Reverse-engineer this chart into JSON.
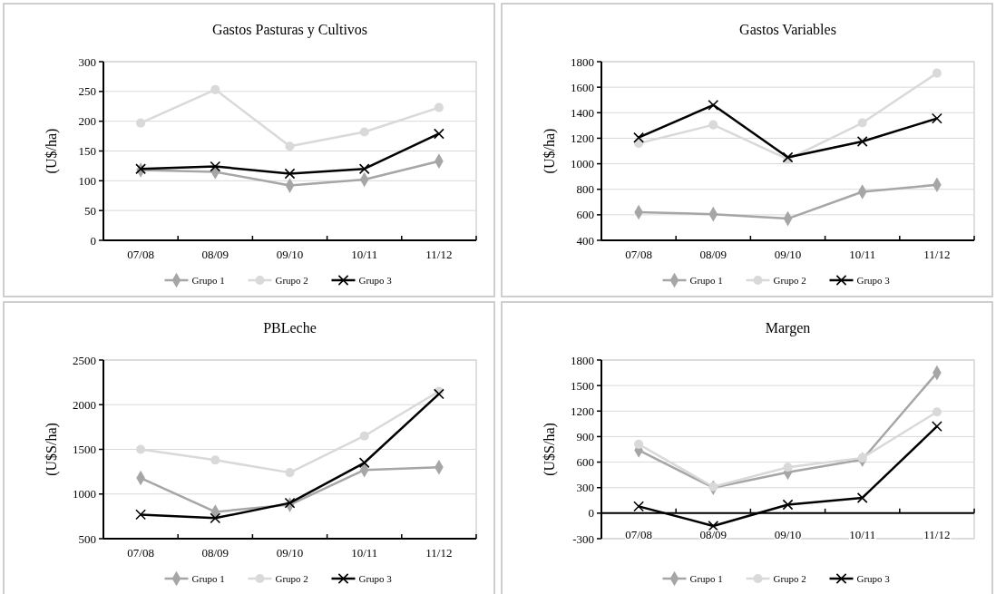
{
  "chart_data": [
    {
      "type": "line",
      "title": "Gastos Pasturas y Cultivos",
      "ylabel": "(U$/ha)",
      "categories": [
        "07/08",
        "08/09",
        "09/10",
        "10/11",
        "11/12"
      ],
      "ylim": [
        0,
        300
      ],
      "yticks": [
        0,
        50,
        100,
        150,
        200,
        250,
        300
      ],
      "grid": "y",
      "legend": "bottom",
      "series": [
        {
          "name": "Grupo 1",
          "color": "#a6a6a6",
          "marker": "diamond",
          "values": [
            118,
            115,
            92,
            102,
            133
          ]
        },
        {
          "name": "Grupo 2",
          "color": "#d9d9d9",
          "marker": "circle",
          "values": [
            197,
            253,
            158,
            182,
            223
          ]
        },
        {
          "name": "Grupo 3",
          "color": "#000000",
          "marker": "cross",
          "values": [
            120,
            124,
            112,
            120,
            179
          ]
        }
      ]
    },
    {
      "type": "line",
      "title": "Gastos Variables",
      "ylabel": "(U$/ha)",
      "categories": [
        "07/08",
        "08/09",
        "09/10",
        "10/11",
        "11/12"
      ],
      "ylim": [
        400,
        1800
      ],
      "yticks": [
        400,
        600,
        800,
        1000,
        1200,
        1400,
        1600,
        1800
      ],
      "grid": "y",
      "legend": "bottom",
      "series": [
        {
          "name": "Grupo 1",
          "color": "#a6a6a6",
          "marker": "diamond",
          "values": [
            620,
            605,
            570,
            780,
            835
          ]
        },
        {
          "name": "Grupo 2",
          "color": "#d9d9d9",
          "marker": "circle",
          "values": [
            1160,
            1305,
            1035,
            1320,
            1710
          ]
        },
        {
          "name": "Grupo 3",
          "color": "#000000",
          "marker": "cross",
          "values": [
            1205,
            1460,
            1050,
            1175,
            1355
          ]
        }
      ]
    },
    {
      "type": "line",
      "title": "PBLeche",
      "ylabel": "(U$S/ha)",
      "categories": [
        "07/08",
        "08/09",
        "09/10",
        "10/11",
        "11/12"
      ],
      "ylim": [
        500,
        2500
      ],
      "yticks": [
        500,
        1000,
        1500,
        2000,
        2500
      ],
      "grid": "y",
      "legend": "bottom",
      "series": [
        {
          "name": "Grupo 1",
          "color": "#a6a6a6",
          "marker": "diamond",
          "values": [
            1180,
            800,
            880,
            1270,
            1300
          ]
        },
        {
          "name": "Grupo 2",
          "color": "#d9d9d9",
          "marker": "circle",
          "values": [
            1500,
            1380,
            1240,
            1650,
            2150
          ]
        },
        {
          "name": "Grupo 3",
          "color": "#000000",
          "marker": "cross",
          "values": [
            770,
            730,
            900,
            1350,
            2120
          ]
        }
      ]
    },
    {
      "type": "line",
      "title": "Margen",
      "ylabel": "(U$S/ha)",
      "categories": [
        "07/08",
        "08/09",
        "09/10",
        "10/11",
        "11/12"
      ],
      "ylim": [
        -300,
        1800
      ],
      "yticks": [
        -300,
        0,
        300,
        600,
        900,
        1200,
        1500,
        1800
      ],
      "grid": "y",
      "legend": "bottom",
      "series": [
        {
          "name": "Grupo 1",
          "color": "#a6a6a6",
          "marker": "diamond",
          "values": [
            740,
            300,
            480,
            630,
            1650
          ]
        },
        {
          "name": "Grupo 2",
          "color": "#d9d9d9",
          "marker": "circle",
          "values": [
            810,
            310,
            540,
            650,
            1190
          ]
        },
        {
          "name": "Grupo 3",
          "color": "#000000",
          "marker": "cross",
          "values": [
            80,
            -150,
            100,
            180,
            1020
          ]
        }
      ]
    }
  ]
}
